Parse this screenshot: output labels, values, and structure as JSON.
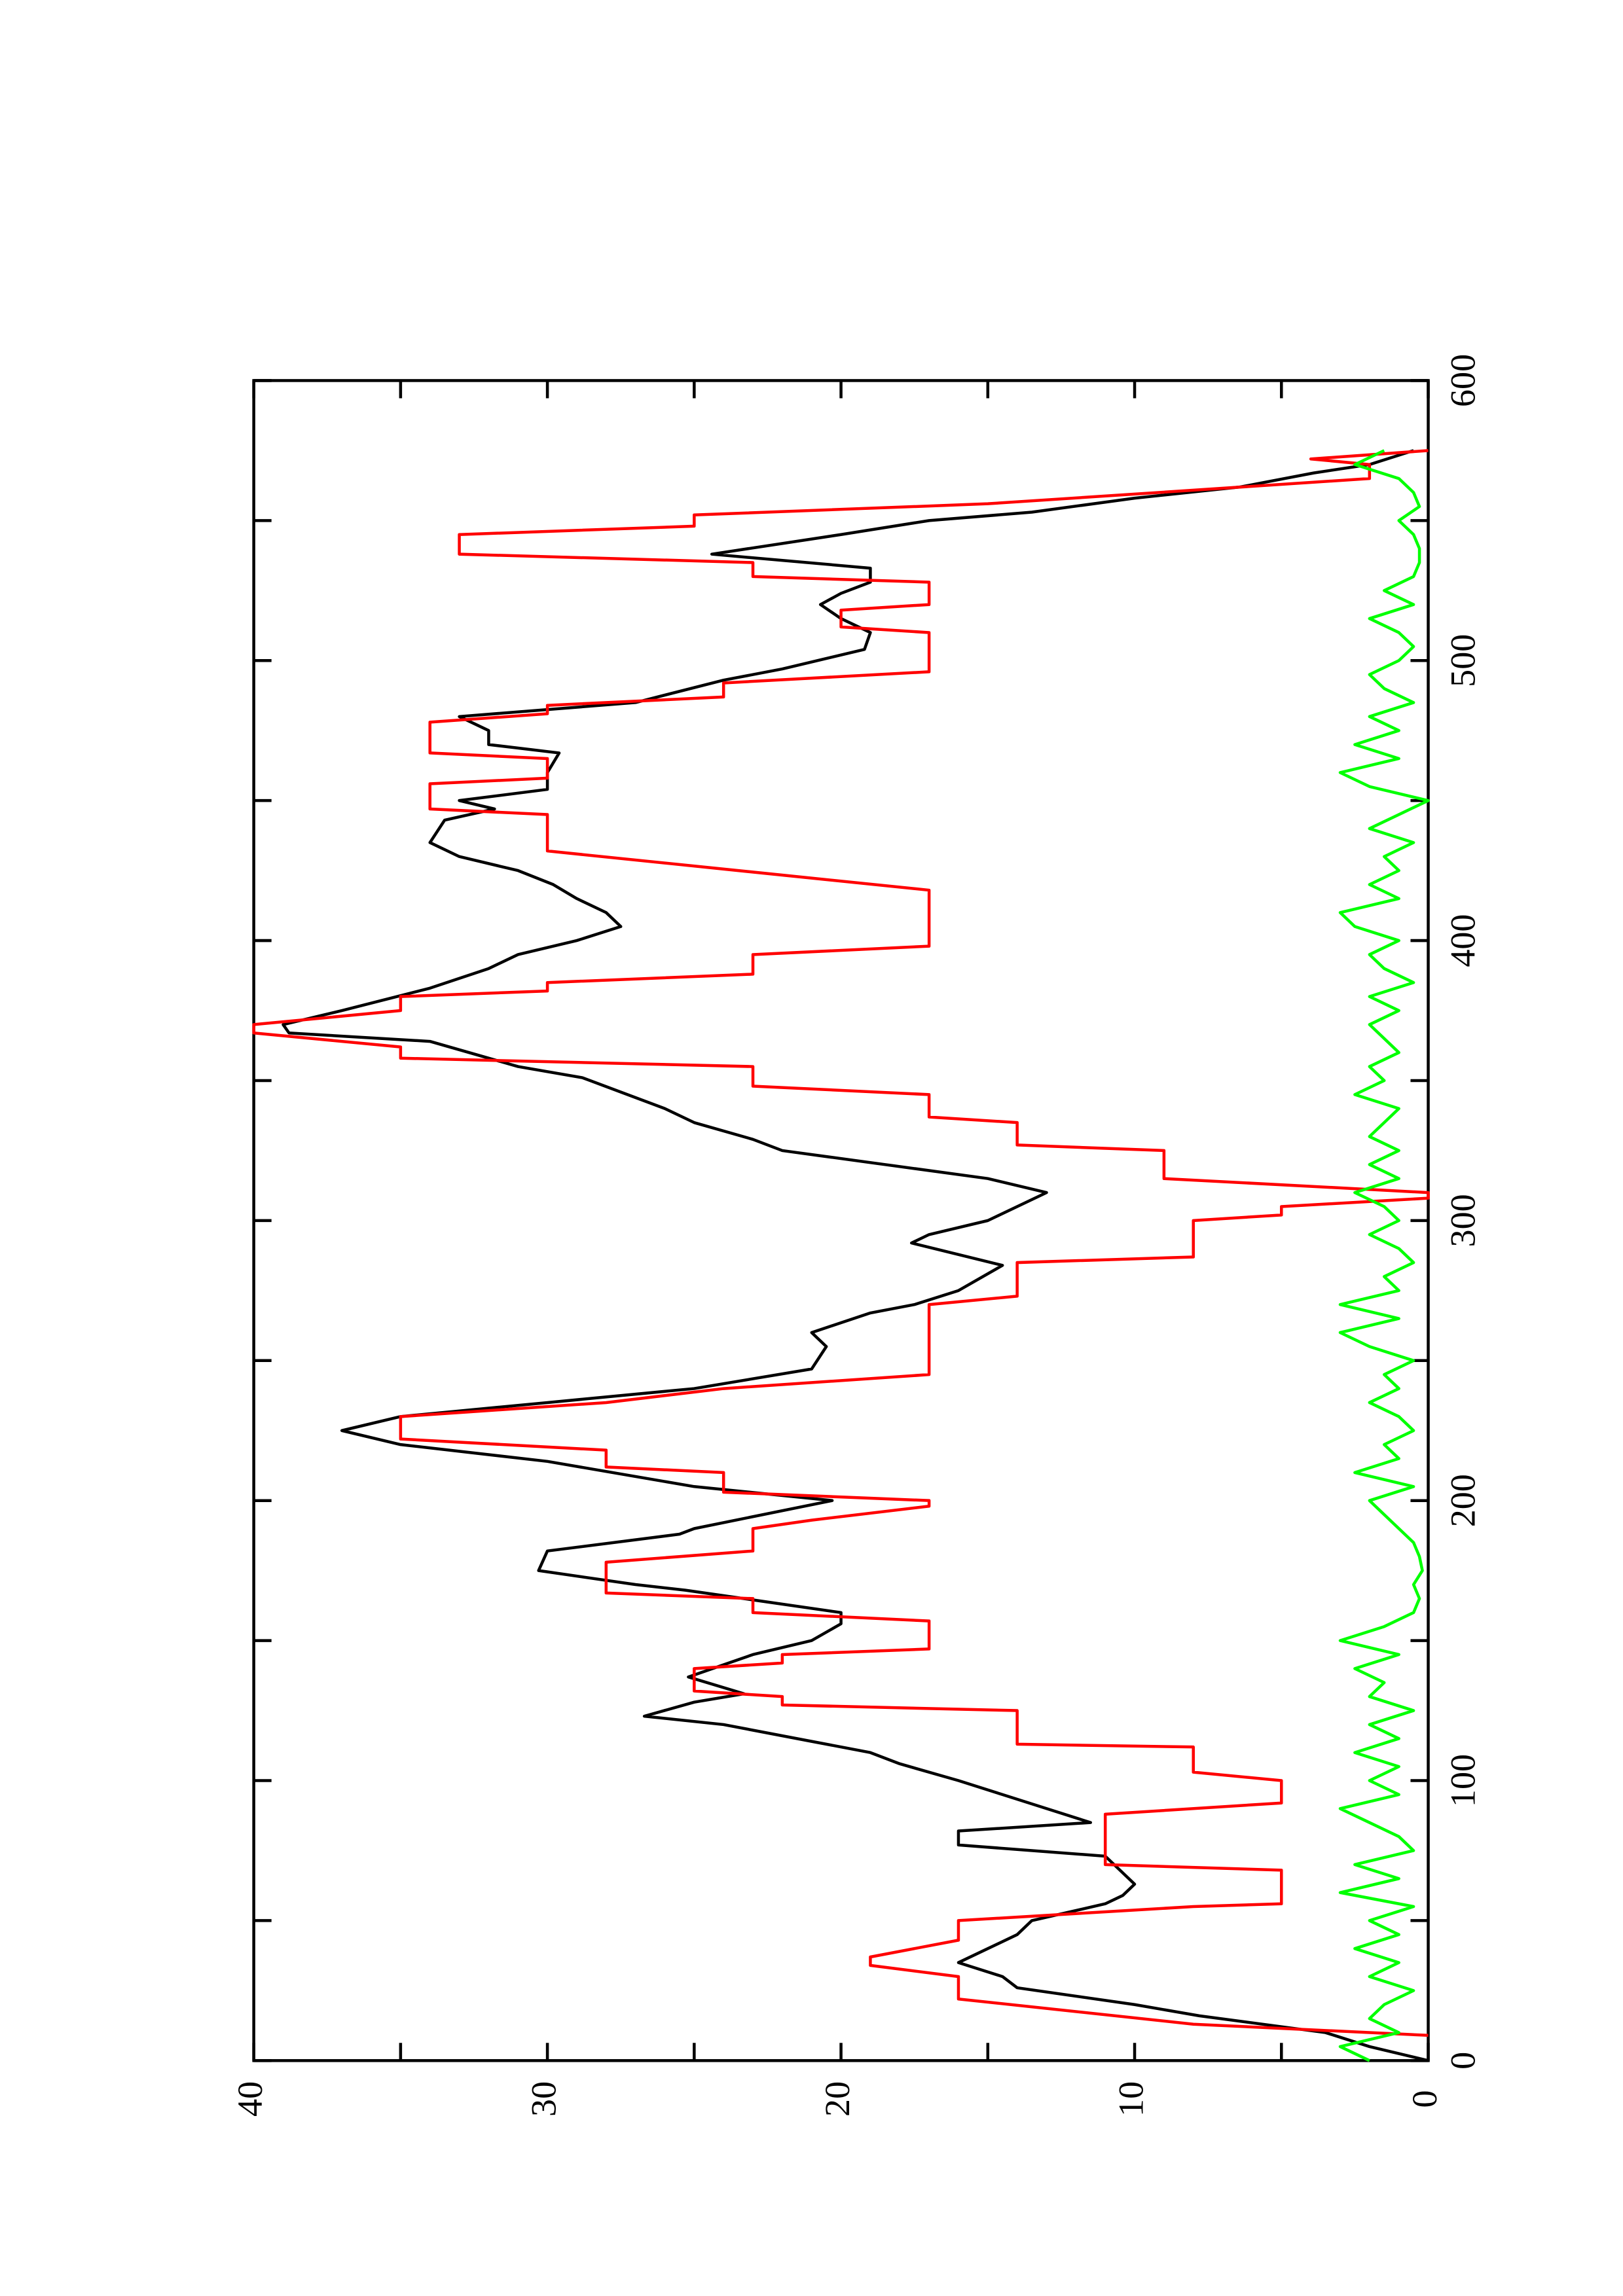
{
  "chart_data": {
    "type": "line",
    "xlim": [
      0,
      600
    ],
    "xticks": [
      0,
      100,
      200,
      300,
      400,
      500,
      600
    ],
    "xminorticks": [
      50,
      150,
      250,
      350,
      450,
      550
    ],
    "ylim": [
      0,
      40
    ],
    "yticks": [
      0,
      10,
      20,
      30,
      40
    ],
    "yminorticks": [
      5,
      15,
      25,
      35
    ],
    "rotation": -90,
    "series": [
      {
        "color": "#000000",
        "x": [
          0,
          5,
          10,
          16,
          20,
          26,
          30,
          35,
          40,
          45,
          50,
          56,
          59,
          63,
          68,
          73,
          77,
          82,
          85,
          90,
          95,
          100,
          106,
          110,
          114,
          120,
          123,
          128,
          131,
          137,
          145,
          150,
          156,
          160,
          168,
          170,
          175,
          182,
          188,
          190,
          200,
          205,
          214,
          220,
          225,
          230,
          235,
          240,
          247,
          255,
          260,
          267,
          270,
          275,
          284,
          292,
          295,
          300,
          310,
          315,
          320,
          325,
          329,
          335,
          340,
          351,
          355,
          364,
          367,
          370,
          375,
          383,
          390,
          395,
          400,
          405,
          410,
          415,
          420,
          425,
          430,
          435,
          443,
          447,
          450,
          454,
          460,
          467,
          470,
          475,
          480,
          485,
          493,
          497,
          504,
          510,
          515,
          520,
          524,
          528,
          533,
          538,
          545,
          550,
          553,
          558,
          562,
          567,
          570,
          575
        ],
        "values": [
          0,
          2,
          3.5,
          7.8,
          10,
          14,
          14.5,
          16,
          15,
          14,
          13.5,
          11,
          10.4,
          10,
          10.5,
          11,
          16,
          16,
          11.5,
          13,
          14.5,
          16,
          18,
          19,
          21,
          24,
          26.7,
          25,
          23.3,
          25.2,
          23,
          21,
          20,
          20,
          25.3,
          27,
          30.3,
          30,
          25.5,
          25,
          20.3,
          25,
          30,
          35,
          37,
          35,
          30,
          25,
          21,
          20.5,
          21,
          19,
          17.5,
          16,
          14.5,
          17.6,
          17,
          15,
          13,
          15,
          18.5,
          22,
          23,
          25,
          26,
          28.8,
          31,
          34,
          38.8,
          39,
          37,
          34,
          32,
          31,
          29,
          27.5,
          28,
          29,
          29.8,
          31,
          33,
          34,
          33.5,
          31.8,
          33,
          30,
          30,
          29.6,
          32,
          32,
          33,
          27,
          24,
          22,
          19.2,
          19,
          20,
          20.7,
          20,
          19,
          19,
          24.4,
          20,
          17,
          13.5,
          10,
          6.4,
          3.9,
          2,
          0.5
        ]
      },
      {
        "color": "#ff0000",
        "x": [
          9,
          13,
          22,
          30,
          34,
          37,
          43,
          50,
          55,
          56,
          68,
          70,
          88,
          92,
          100,
          103,
          112,
          113,
          125,
          127,
          130,
          132,
          140,
          142,
          145,
          147,
          157,
          160,
          165,
          167,
          178,
          182,
          190,
          193,
          198,
          200,
          203,
          210,
          212,
          218,
          222,
          230,
          235,
          240,
          245,
          270,
          273,
          285,
          287,
          300,
          302,
          305,
          308,
          310,
          315,
          325,
          327,
          335,
          337,
          345,
          348,
          355,
          358,
          362,
          367,
          370,
          375,
          380,
          382,
          385,
          388,
          395,
          398,
          418,
          432,
          445,
          447,
          456,
          458,
          465,
          467,
          478,
          481,
          484,
          487,
          492,
          496,
          510,
          512,
          518,
          520,
          528,
          530,
          535,
          538,
          545,
          548,
          552,
          556,
          565,
          570,
          572,
          575
        ],
        "values": [
          0,
          8,
          16,
          16,
          19,
          19,
          16,
          16,
          8,
          5,
          5,
          11,
          11,
          5,
          5,
          8,
          8,
          14,
          14,
          22,
          22,
          25,
          25,
          22,
          22,
          17,
          17,
          23,
          23,
          28,
          28,
          23,
          23,
          21,
          17,
          17,
          24,
          24,
          28,
          28,
          35,
          35,
          28,
          24,
          17,
          17,
          14,
          14,
          8,
          8,
          5,
          5,
          0,
          0,
          9,
          9,
          14,
          14,
          17,
          17,
          23,
          23,
          35,
          35,
          40,
          40,
          35,
          35,
          30,
          30,
          23,
          23,
          17,
          17,
          30,
          30,
          34,
          34,
          30,
          30,
          34,
          34,
          30,
          30,
          24,
          24,
          17,
          17,
          20,
          20,
          17,
          17,
          23,
          23,
          33,
          33,
          25,
          25,
          15,
          2,
          2,
          4,
          0
        ]
      },
      {
        "color": "#00ff00",
        "x": [
          0,
          5,
          10,
          15,
          20,
          25,
          30,
          35,
          40,
          45,
          50,
          55,
          60,
          65,
          70,
          75,
          80,
          85,
          90,
          95,
          100,
          105,
          110,
          115,
          120,
          125,
          130,
          135,
          140,
          145,
          150,
          155,
          160,
          165,
          170,
          175,
          180,
          185,
          190,
          195,
          200,
          205,
          210,
          215,
          220,
          225,
          230,
          235,
          240,
          245,
          250,
          255,
          260,
          265,
          270,
          275,
          280,
          285,
          290,
          295,
          300,
          305,
          310,
          315,
          320,
          325,
          330,
          335,
          340,
          345,
          350,
          355,
          360,
          365,
          370,
          375,
          380,
          385,
          390,
          395,
          400,
          405,
          410,
          415,
          420,
          425,
          430,
          435,
          440,
          445,
          450,
          455,
          460,
          465,
          470,
          475,
          480,
          485,
          490,
          495,
          500,
          505,
          510,
          515,
          520,
          525,
          530,
          535,
          540,
          545,
          550,
          555,
          560,
          565,
          570,
          575
        ],
        "values": [
          2,
          3,
          1,
          2,
          1.5,
          0.5,
          2,
          1,
          2.5,
          1,
          2,
          0.5,
          3,
          1,
          2.5,
          0.5,
          1,
          2,
          3,
          1,
          2,
          1,
          2.5,
          1,
          2,
          0.5,
          2,
          1.5,
          2.5,
          1,
          3,
          1.5,
          0.5,
          0.3,
          0.5,
          0.2,
          0.3,
          0.5,
          1,
          1.5,
          2,
          0.5,
          2.5,
          1,
          1.5,
          0.5,
          1,
          2,
          1,
          1.5,
          0.5,
          2,
          3,
          1,
          3,
          1,
          1.5,
          0.5,
          1,
          2,
          1,
          1.5,
          2.5,
          1,
          2,
          1,
          2,
          1.5,
          1,
          2.5,
          1.5,
          2,
          1,
          1.5,
          2,
          1,
          2,
          0.5,
          1.5,
          2,
          1,
          2.5,
          3,
          1,
          2,
          1,
          1.5,
          0.5,
          2,
          1,
          0,
          2,
          3,
          1,
          2.5,
          1,
          2,
          0.5,
          1.5,
          2,
          1,
          0.5,
          1,
          2,
          0.5,
          1.5,
          0.5,
          0.3,
          0.3,
          0.5,
          1,
          0.3,
          0.5,
          1,
          2.5,
          1.5
        ]
      }
    ]
  }
}
